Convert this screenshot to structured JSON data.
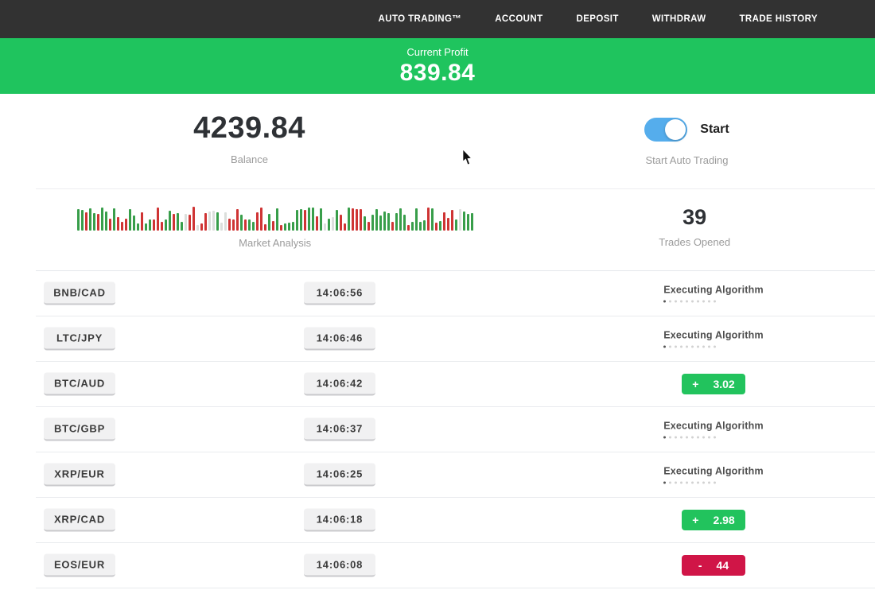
{
  "nav": {
    "items": [
      "AUTO TRADING™",
      "ACCOUNT",
      "DEPOSIT",
      "WITHDRAW",
      "TRADE HISTORY"
    ]
  },
  "profit_banner": {
    "label": "Current Profit",
    "value": "839.84"
  },
  "account": {
    "balance": "4239.84",
    "balance_label": "Balance",
    "toggle_label": "Start",
    "toggle_sublabel": "Start Auto Trading",
    "toggle_on": true
  },
  "market": {
    "label": "Market Analysis",
    "trades_opened": "39",
    "trades_opened_label": "Trades Opened",
    "bars": {
      "count": 100,
      "min_h": 7,
      "max_h": 30,
      "seed": 9,
      "green": "#389e4a",
      "red": "#cf3434",
      "faint": "#dcdfdc"
    }
  },
  "executing": {
    "label": "Executing Algorithm",
    "dots_total": 10,
    "dots_active": 1
  },
  "trades": [
    {
      "pair": "BNB/CAD",
      "time": "14:06:56",
      "status": "executing"
    },
    {
      "pair": "LTC/JPY",
      "time": "14:06:46",
      "status": "executing"
    },
    {
      "pair": "BTC/AUD",
      "time": "14:06:42",
      "status": "profit",
      "sign": "+",
      "value": "3.02"
    },
    {
      "pair": "BTC/GBP",
      "time": "14:06:37",
      "status": "executing"
    },
    {
      "pair": "XRP/EUR",
      "time": "14:06:25",
      "status": "executing"
    },
    {
      "pair": "XRP/CAD",
      "time": "14:06:18",
      "status": "profit",
      "sign": "+",
      "value": "2.98"
    },
    {
      "pair": "EOS/EUR",
      "time": "14:06:08",
      "status": "loss",
      "sign": "-",
      "value": "44"
    }
  ],
  "colors": {
    "nav_bg": "#323232",
    "green": "#1fc45e",
    "badge_green": "#22c35d",
    "red": "#d01547",
    "toggle_blue": "#55adec"
  }
}
